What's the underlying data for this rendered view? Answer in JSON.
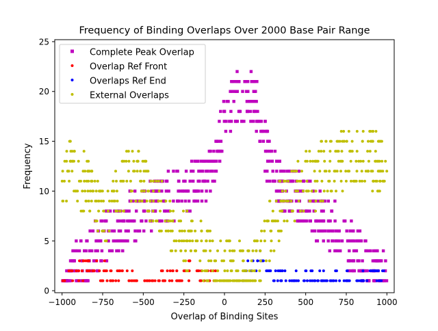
{
  "chart_data": {
    "type": "scatter",
    "title": "Frequency of Binding Overlaps Over 2000 Base Pair Range",
    "xlabel": "Overlap of Binding Sites",
    "ylabel": "Frequency",
    "xlim": [
      -1045,
      1045
    ],
    "ylim": [
      -0.2,
      25.2
    ],
    "xticks": [
      -1000,
      -750,
      -500,
      -250,
      0,
      250,
      500,
      750,
      1000
    ],
    "xtick_labels": [
      "−1000",
      "−750",
      "−500",
      "−250",
      "0",
      "250",
      "500",
      "750",
      "1000"
    ],
    "yticks": [
      0,
      5,
      10,
      15,
      20,
      25
    ],
    "ytick_labels": [
      "0",
      "5",
      "10",
      "15",
      "20",
      "25"
    ],
    "grid": false,
    "legend_position": "upper-left",
    "series": [
      {
        "name": "Complete Peak Overlap",
        "color": "#bf00bf",
        "marker": "square",
        "profile": [
          [
            -1000,
            1
          ],
          [
            -950,
            1.5
          ],
          [
            -900,
            2.5
          ],
          [
            -850,
            3
          ],
          [
            -800,
            4
          ],
          [
            -750,
            5.5
          ],
          [
            -700,
            6
          ],
          [
            -650,
            6.5
          ],
          [
            -600,
            7
          ],
          [
            -550,
            7.5
          ],
          [
            -500,
            8
          ],
          [
            -450,
            8.5
          ],
          [
            -400,
            9
          ],
          [
            -350,
            9.5
          ],
          [
            -300,
            10
          ],
          [
            -250,
            10
          ],
          [
            -200,
            10.5
          ],
          [
            -150,
            11
          ],
          [
            -100,
            12
          ],
          [
            -50,
            14
          ],
          [
            0,
            17
          ],
          [
            50,
            19
          ],
          [
            100,
            19.5
          ],
          [
            150,
            19.5
          ],
          [
            200,
            18.5
          ],
          [
            250,
            14.5
          ],
          [
            300,
            12
          ],
          [
            350,
            10.5
          ],
          [
            400,
            10
          ],
          [
            450,
            9.5
          ],
          [
            500,
            9
          ],
          [
            550,
            8
          ],
          [
            600,
            7
          ],
          [
            650,
            6.5
          ],
          [
            700,
            6
          ],
          [
            750,
            5
          ],
          [
            800,
            4
          ],
          [
            850,
            3
          ],
          [
            900,
            2.5
          ],
          [
            950,
            2
          ],
          [
            1000,
            1.5
          ]
        ],
        "spread": 2.5,
        "point_count": 700
      },
      {
        "name": "Overlap Ref Front",
        "color": "#ff0000",
        "marker": "circle",
        "profile": [
          [
            -1000,
            1
          ],
          [
            -950,
            1.5
          ],
          [
            -900,
            2
          ],
          [
            -850,
            2.5
          ],
          [
            -800,
            2.5
          ],
          [
            -750,
            2
          ],
          [
            -700,
            1.5
          ],
          [
            -650,
            1.5
          ],
          [
            -600,
            1.2
          ],
          [
            -500,
            1
          ],
          [
            -400,
            1.5
          ],
          [
            -300,
            1.5
          ],
          [
            -200,
            2
          ],
          [
            -150,
            2
          ],
          [
            -100,
            1.5
          ],
          [
            -50,
            1
          ]
        ],
        "spread": 1.0,
        "point_count": 120
      },
      {
        "name": "Overlaps Ref End",
        "color": "#0000ff",
        "marker": "circle",
        "profile": [
          [
            100,
            1
          ],
          [
            150,
            2
          ],
          [
            200,
            3
          ],
          [
            250,
            3
          ],
          [
            300,
            1.5
          ],
          [
            350,
            1.2
          ],
          [
            400,
            1
          ],
          [
            500,
            1
          ],
          [
            600,
            1
          ],
          [
            700,
            1
          ],
          [
            800,
            1
          ],
          [
            900,
            1.5
          ],
          [
            1000,
            1.5
          ]
        ],
        "spread": 0.8,
        "point_count": 110
      },
      {
        "name": "External Overlaps",
        "color": "#bfbf00",
        "marker": "circle",
        "profile": [
          [
            -1000,
            11
          ],
          [
            -950,
            12.5
          ],
          [
            -900,
            11
          ],
          [
            -850,
            11
          ],
          [
            -800,
            9
          ],
          [
            -750,
            7
          ],
          [
            -700,
            7.5
          ],
          [
            -650,
            10
          ],
          [
            -600,
            11
          ],
          [
            -550,
            12
          ],
          [
            -500,
            11
          ],
          [
            -450,
            9.5
          ],
          [
            -400,
            8
          ],
          [
            -350,
            7.5
          ],
          [
            -300,
            6
          ],
          [
            -250,
            5
          ],
          [
            -200,
            4.5
          ],
          [
            -150,
            4
          ],
          [
            -100,
            3
          ],
          [
            -50,
            2
          ],
          [
            150,
            1.5
          ],
          [
            200,
            3
          ],
          [
            250,
            5
          ],
          [
            300,
            7
          ],
          [
            350,
            8.5
          ],
          [
            400,
            9.5
          ],
          [
            450,
            10.5
          ],
          [
            500,
            11
          ],
          [
            550,
            11
          ],
          [
            600,
            12
          ],
          [
            650,
            12.5
          ],
          [
            700,
            13
          ],
          [
            750,
            13
          ],
          [
            800,
            13
          ],
          [
            850,
            14
          ],
          [
            900,
            13.5
          ],
          [
            950,
            13
          ],
          [
            1000,
            14
          ]
        ],
        "spread": 3.0,
        "point_count": 600
      }
    ]
  }
}
